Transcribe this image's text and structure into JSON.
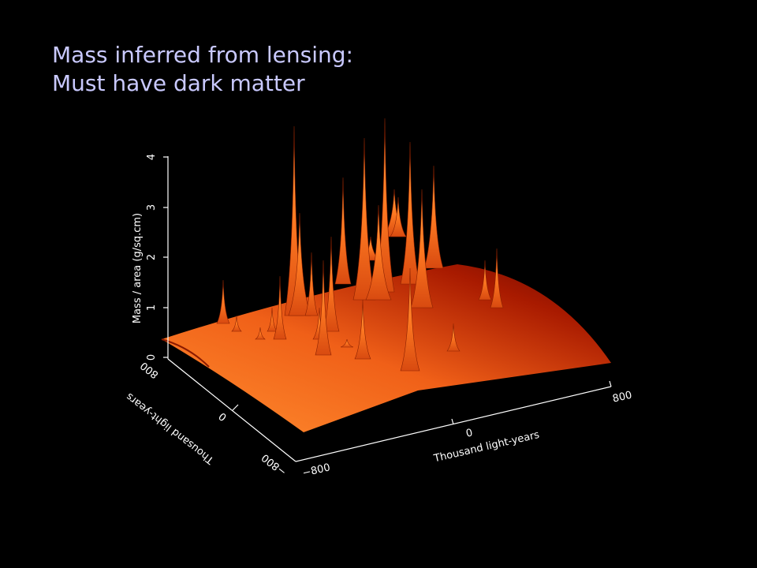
{
  "slide": {
    "title": [
      "Mass inferred from lensing:",
      "Must have dark matter"
    ]
  },
  "plot": {
    "z_axis": {
      "label": "Mass / area (g/sq.cm)",
      "ticks": [
        "0",
        "1",
        "2",
        "3",
        "4"
      ]
    },
    "y_axis": {
      "label": "Thousand light-years",
      "ticks": [
        "800",
        "0",
        "−800"
      ]
    },
    "x_axis": {
      "label": "Thousand light-years",
      "ticks": [
        "−800",
        "0",
        "800"
      ]
    }
  }
}
